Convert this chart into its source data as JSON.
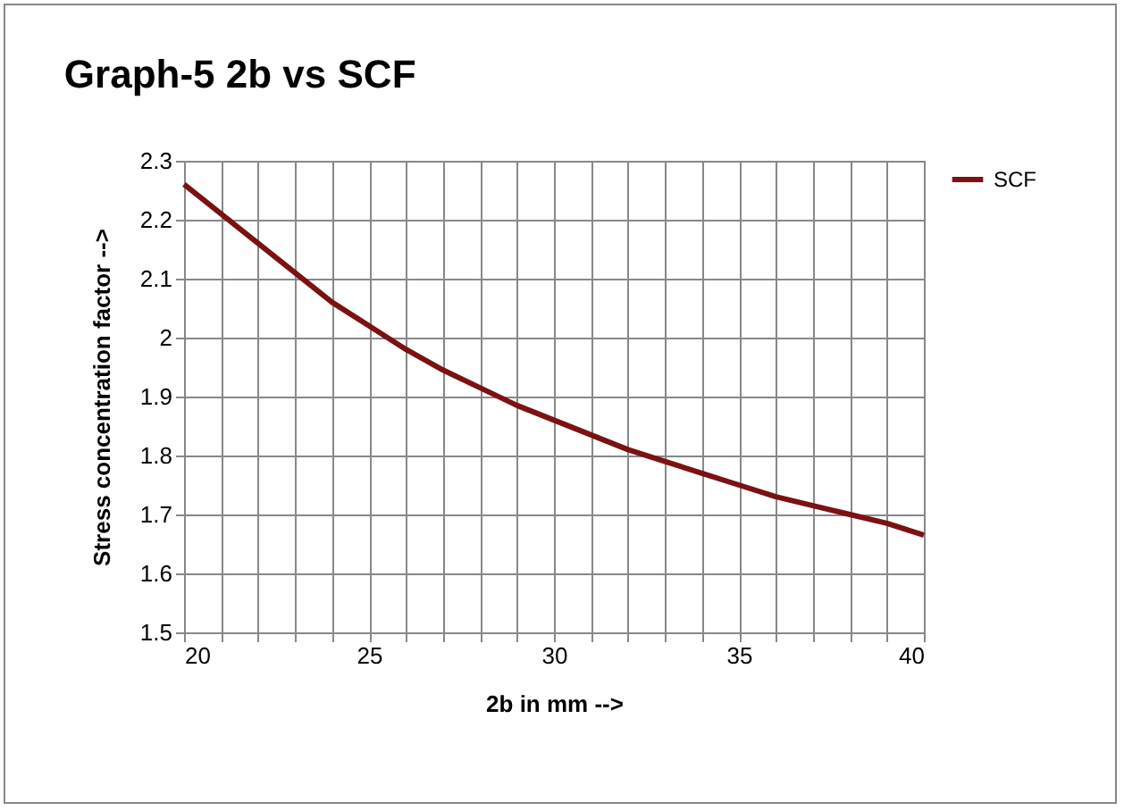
{
  "chart_data": {
    "type": "line",
    "title": "Graph-5     2b vs SCF",
    "xlabel": "2b in mm -->",
    "ylabel": "Stress concentration factor -->",
    "x": [
      20,
      21,
      22,
      23,
      24,
      25,
      26,
      27,
      28,
      29,
      30,
      31,
      32,
      33,
      34,
      35,
      36,
      37,
      38,
      39,
      40
    ],
    "series": [
      {
        "name": "SCF",
        "color": "#7b1113",
        "values": [
          2.26,
          2.21,
          2.16,
          2.11,
          2.06,
          2.02,
          1.98,
          1.945,
          1.915,
          1.885,
          1.86,
          1.835,
          1.81,
          1.79,
          1.77,
          1.75,
          1.73,
          1.715,
          1.7,
          1.685,
          1.665
        ]
      }
    ],
    "xlim": [
      20,
      40
    ],
    "xticks": [
      20,
      {
        "value": 21,
        "label": null
      },
      {
        "value": 22,
        "label": null
      },
      {
        "value": 23,
        "label": null
      },
      {
        "value": 24,
        "label": null
      },
      25,
      {
        "value": 26,
        "label": null
      },
      {
        "value": 27,
        "label": null
      },
      {
        "value": 28,
        "label": null
      },
      {
        "value": 29,
        "label": null
      },
      30,
      {
        "value": 31,
        "label": null
      },
      {
        "value": 32,
        "label": null
      },
      {
        "value": 33,
        "label": null
      },
      {
        "value": 34,
        "label": null
      },
      35,
      {
        "value": 36,
        "label": null
      },
      {
        "value": 37,
        "label": null
      },
      {
        "value": 38,
        "label": null
      },
      {
        "value": 39,
        "label": null
      },
      40
    ],
    "ylim": [
      1.5,
      2.3
    ],
    "yticks": [
      1.5,
      1.6,
      1.7,
      1.8,
      1.9,
      2,
      2.1,
      2.2,
      2.3
    ],
    "grid": true,
    "legend": "right",
    "marker": "none",
    "line_style": "solid"
  }
}
